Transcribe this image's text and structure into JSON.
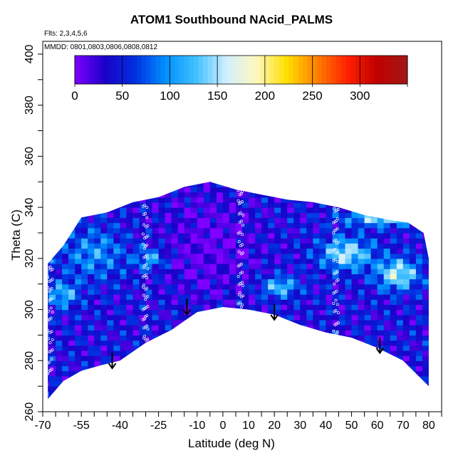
{
  "chart_data": {
    "type": "heatmap",
    "title": "ATOM1 Southbound NAcid_PALMS",
    "notes": [
      "Flts: 2,3,4,5,6",
      "MMDD: 0801,0803,0806,0808,0812"
    ],
    "xlabel": "Latitude (deg N)",
    "ylabel": "Theta (C)",
    "xlim": [
      -70,
      85
    ],
    "ylim": [
      260,
      405
    ],
    "x_ticks_labeled": [
      "-70",
      "-55",
      "-40",
      "-25",
      "-10",
      "0",
      "10",
      "20",
      "30",
      "40",
      "50",
      "60",
      "70",
      "80"
    ],
    "y_ticks_labeled": [
      "260",
      "280",
      "300",
      "320",
      "340",
      "360",
      "380",
      "400"
    ],
    "colorbar": {
      "ticks": [
        "0",
        "50",
        "100",
        "150",
        "200",
        "250",
        "300"
      ],
      "range": [
        0,
        350
      ],
      "colors": [
        "#7f00ff",
        "#1a00c8",
        "#0030e0",
        "#0090ff",
        "#40c0ff",
        "#cfefff",
        "#fff8c0",
        "#ffe000",
        "#ff8000",
        "#ff2000",
        "#c00000",
        "#a01818"
      ]
    },
    "upper_envelope": [
      [
        -68,
        318
      ],
      [
        -62,
        325
      ],
      [
        -55,
        336
      ],
      [
        -45,
        338
      ],
      [
        -35,
        342
      ],
      [
        -25,
        344
      ],
      [
        -15,
        348
      ],
      [
        -5,
        350
      ],
      [
        5,
        347
      ],
      [
        15,
        345
      ],
      [
        25,
        343
      ],
      [
        35,
        342
      ],
      [
        45,
        340
      ],
      [
        55,
        337
      ],
      [
        65,
        335
      ],
      [
        72,
        334
      ],
      [
        78,
        330
      ],
      [
        80,
        320
      ]
    ],
    "lower_envelope": [
      [
        -68,
        265
      ],
      [
        -62,
        272
      ],
      [
        -55,
        276
      ],
      [
        -48,
        278
      ],
      [
        -40,
        280
      ],
      [
        -30,
        287
      ],
      [
        -20,
        292
      ],
      [
        -10,
        299
      ],
      [
        0,
        301
      ],
      [
        10,
        300
      ],
      [
        20,
        298
      ],
      [
        30,
        294
      ],
      [
        40,
        291
      ],
      [
        50,
        289
      ],
      [
        60,
        285
      ],
      [
        70,
        280
      ],
      [
        78,
        272
      ],
      [
        80,
        270
      ]
    ],
    "arrows": [
      [
        -43,
        277
      ],
      [
        -14,
        298
      ],
      [
        20,
        296
      ],
      [
        61,
        283
      ]
    ]
  }
}
